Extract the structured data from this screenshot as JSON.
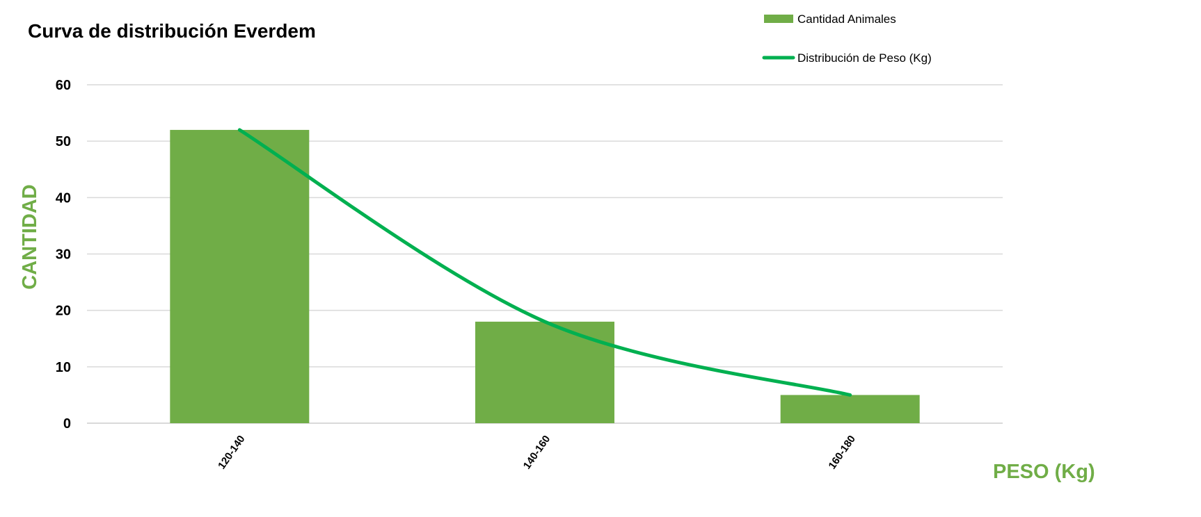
{
  "chart_data": {
    "type": "bar",
    "title": "Curva de distribución Everdem",
    "xlabel": "PESO (Kg)",
    "ylabel": "CANTIDAD",
    "categories": [
      "120-140",
      "140-160",
      "160-180"
    ],
    "series": [
      {
        "name": "Cantidad Animales",
        "type": "bar",
        "values": [
          52,
          18,
          5
        ],
        "color": "#70AD47"
      },
      {
        "name": "Distribución de Peso (Kg)",
        "type": "line",
        "smooth": true,
        "values": [
          52,
          18,
          5
        ],
        "color": "#00B050"
      }
    ],
    "ylim": [
      0,
      60
    ],
    "yticks": [
      0,
      10,
      20,
      30,
      40,
      50,
      60
    ],
    "grid": true,
    "legend_position": "top-right",
    "axis_label_color": "#70AD47",
    "gridline_color": "#D9D9D9"
  }
}
